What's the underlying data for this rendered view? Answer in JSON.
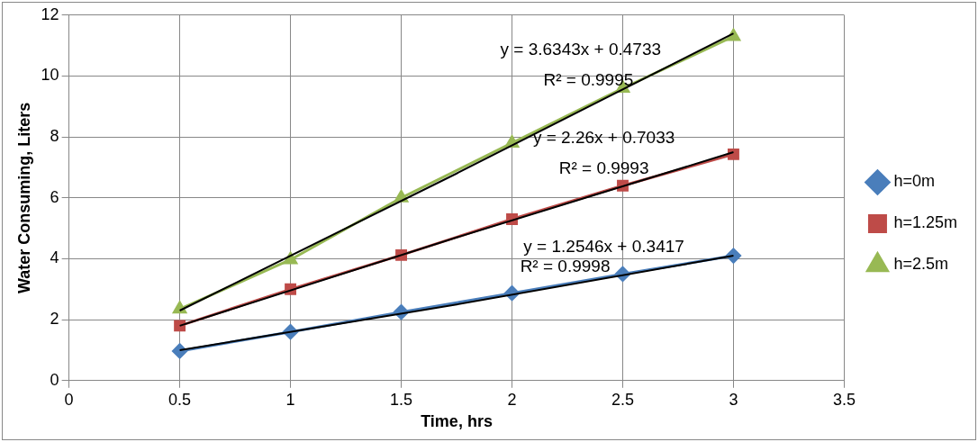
{
  "chart_data": {
    "type": "line",
    "xlabel": "Time, hrs",
    "ylabel": "Water Consuming, Liters",
    "x": [
      0.5,
      1,
      1.5,
      2,
      2.5,
      3
    ],
    "series": [
      {
        "name": "h=0m",
        "color": "#4a7ebb",
        "marker": "diamond",
        "values": [
          0.97,
          1.6,
          2.25,
          2.87,
          3.5,
          4.1
        ]
      },
      {
        "name": "h=1.25m",
        "color": "#be4b48",
        "marker": "square",
        "values": [
          1.8,
          3.0,
          4.12,
          5.3,
          6.4,
          7.43
        ]
      },
      {
        "name": "h=2.5m",
        "color": "#98b954",
        "marker": "triangle",
        "values": [
          2.35,
          3.97,
          6.0,
          7.8,
          9.6,
          11.3
        ]
      },
      {
        "type": "line",
        "color": "#000000",
        "marker": "none",
        "x": [
          0.5,
          1.75,
          3
        ],
        "values": [
          1.0,
          2.5,
          4.1
        ]
      },
      {
        "type": "line",
        "color": "#000000",
        "marker": "none",
        "x": [
          0.5,
          1.75,
          3
        ],
        "values": [
          1.8,
          4.7,
          7.5
        ]
      },
      {
        "type": "line",
        "color": "#000000",
        "marker": "none",
        "x": [
          0.5,
          1.75,
          3
        ],
        "values": [
          2.3,
          6.8,
          11.4
        ]
      }
    ],
    "xlim": [
      0,
      3.5
    ],
    "xticks": [
      0,
      0.5,
      1,
      1.5,
      2,
      2.5,
      3,
      3.5
    ],
    "ylim": [
      0,
      12
    ],
    "yticks": [
      0,
      2,
      4,
      6,
      8,
      10,
      12
    ],
    "grid": true,
    "legend": "right",
    "line_style": "solid",
    "annotations": [
      "y = 3.6343x + 0.4733",
      "R² = 0.9995",
      "y = 2.26x + 0.7033",
      "R² = 0.9993",
      "y = 1.2546x + 0.3417",
      "R² = 0.9998"
    ]
  }
}
